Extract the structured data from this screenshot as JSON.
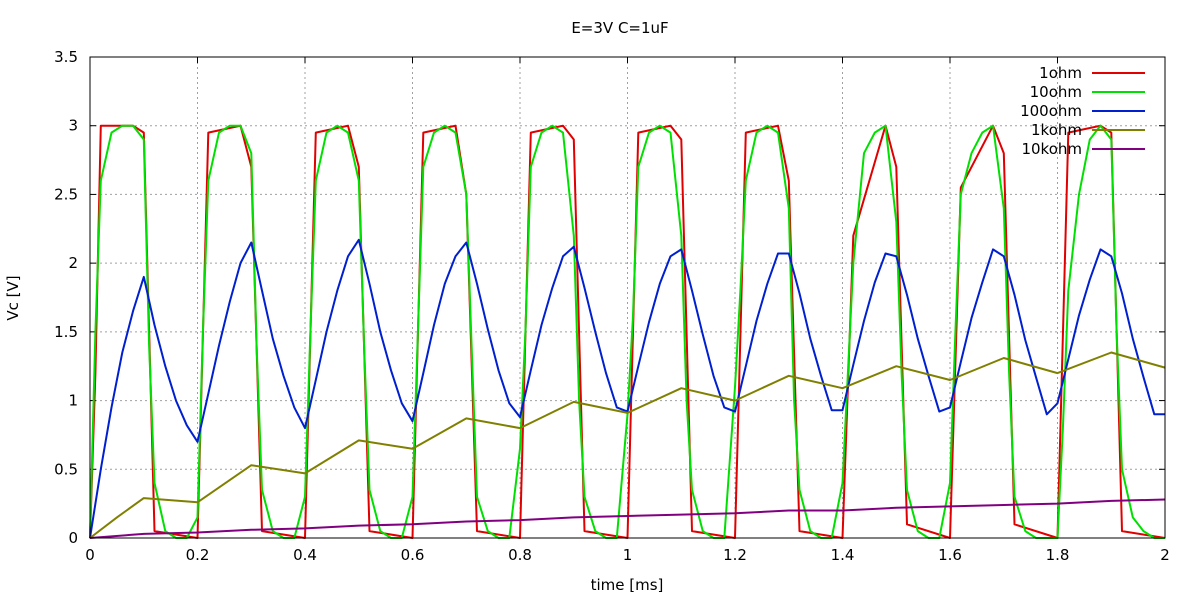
{
  "chart_data": {
    "type": "line",
    "title": "E=3V C=1uF",
    "xlabel": "time [ms]",
    "ylabel": "Vc [V]",
    "xlim": [
      0,
      2
    ],
    "ylim": [
      0,
      3.5
    ],
    "xticks": [
      0,
      0.2,
      0.4,
      0.6,
      0.8,
      1,
      1.2,
      1.4,
      1.6,
      1.8,
      2
    ],
    "yticks": [
      0,
      0.5,
      1,
      1.5,
      2,
      2.5,
      3,
      3.5
    ],
    "grid": true,
    "legend_position": "top-right",
    "series": [
      {
        "name": "1ohm",
        "color": "#e00000",
        "x": [
          0,
          0.01,
          0.02,
          0.08,
          0.1,
          0.12,
          0.2,
          0.22,
          0.28,
          0.3,
          0.32,
          0.4,
          0.42,
          0.48,
          0.5,
          0.52,
          0.6,
          0.62,
          0.68,
          0.7,
          0.72,
          0.8,
          0.82,
          0.88,
          0.9,
          0.92,
          1.0,
          1.02,
          1.08,
          1.1,
          1.12,
          1.2,
          1.22,
          1.28,
          1.3,
          1.32,
          1.4,
          1.42,
          1.48,
          1.5,
          1.52,
          1.6,
          1.62,
          1.68,
          1.7,
          1.72,
          1.8,
          1.82,
          1.88,
          1.9,
          1.92,
          2.0
        ],
        "y": [
          0,
          1.2,
          3.0,
          3.0,
          2.95,
          0.05,
          0.0,
          2.95,
          3.0,
          2.7,
          0.05,
          0.0,
          2.95,
          3.0,
          2.7,
          0.05,
          0.0,
          2.95,
          3.0,
          2.5,
          0.05,
          0.0,
          2.95,
          3.0,
          2.9,
          0.05,
          0.0,
          2.95,
          3.0,
          2.9,
          0.05,
          0.0,
          2.95,
          3.0,
          2.6,
          0.05,
          0.0,
          2.2,
          3.0,
          2.7,
          0.1,
          0.0,
          2.55,
          3.0,
          2.8,
          0.1,
          0.0,
          2.95,
          3.0,
          2.95,
          0.05,
          0.0
        ]
      },
      {
        "name": "10ohm",
        "color": "#00e000",
        "x": [
          0,
          0.01,
          0.02,
          0.04,
          0.06,
          0.08,
          0.1,
          0.11,
          0.12,
          0.14,
          0.16,
          0.18,
          0.2,
          0.21,
          0.22,
          0.24,
          0.26,
          0.28,
          0.3,
          0.31,
          0.32,
          0.34,
          0.36,
          0.38,
          0.4,
          0.41,
          0.42,
          0.44,
          0.46,
          0.48,
          0.5,
          0.51,
          0.52,
          0.54,
          0.56,
          0.58,
          0.6,
          0.61,
          0.62,
          0.64,
          0.66,
          0.68,
          0.7,
          0.71,
          0.72,
          0.74,
          0.76,
          0.78,
          0.8,
          0.81,
          0.82,
          0.84,
          0.86,
          0.88,
          0.9,
          0.91,
          0.92,
          0.94,
          0.96,
          0.98,
          1.0,
          1.01,
          1.02,
          1.04,
          1.06,
          1.08,
          1.1,
          1.11,
          1.12,
          1.14,
          1.16,
          1.18,
          1.2,
          1.21,
          1.22,
          1.24,
          1.26,
          1.28,
          1.3,
          1.31,
          1.32,
          1.34,
          1.36,
          1.38,
          1.4,
          1.41,
          1.42,
          1.44,
          1.46,
          1.48,
          1.5,
          1.51,
          1.52,
          1.54,
          1.56,
          1.58,
          1.6,
          1.61,
          1.62,
          1.64,
          1.66,
          1.68,
          1.7,
          1.71,
          1.72,
          1.74,
          1.76,
          1.78,
          1.8,
          1.81,
          1.82,
          1.84,
          1.86,
          1.88,
          1.9,
          1.91,
          1.92,
          1.94,
          1.96,
          1.98,
          2.0
        ],
        "y": [
          0,
          1.5,
          2.6,
          2.95,
          3.0,
          3.0,
          2.9,
          1.4,
          0.4,
          0.05,
          0.0,
          0.0,
          0.15,
          1.5,
          2.6,
          2.95,
          3.0,
          3.0,
          2.8,
          1.4,
          0.35,
          0.05,
          0.0,
          0.0,
          0.3,
          1.5,
          2.6,
          2.95,
          3.0,
          2.95,
          2.6,
          1.4,
          0.35,
          0.05,
          0.0,
          0.0,
          0.3,
          1.5,
          2.7,
          2.95,
          3.0,
          2.95,
          2.5,
          1.4,
          0.3,
          0.05,
          0.0,
          0.0,
          0.65,
          1.5,
          2.7,
          2.95,
          3.0,
          2.95,
          2.2,
          1.0,
          0.3,
          0.05,
          0.0,
          0.0,
          0.9,
          1.6,
          2.7,
          2.95,
          3.0,
          2.95,
          2.2,
          1.0,
          0.35,
          0.05,
          0.0,
          0.0,
          1.1,
          1.8,
          2.6,
          2.95,
          3.0,
          2.95,
          2.4,
          1.0,
          0.35,
          0.05,
          0.0,
          0.0,
          0.4,
          1.2,
          2.0,
          2.8,
          2.95,
          3.0,
          2.3,
          1.2,
          0.35,
          0.05,
          0.0,
          0.0,
          0.4,
          1.5,
          2.5,
          2.8,
          2.95,
          3.0,
          2.4,
          1.2,
          0.3,
          0.05,
          0.0,
          0.0,
          0.0,
          0.8,
          1.8,
          2.5,
          2.9,
          3.0,
          2.9,
          1.5,
          0.5,
          0.15,
          0.05,
          0.0,
          0.0
        ]
      },
      {
        "name": "100ohm",
        "color": "#0020d0",
        "x": [
          0,
          0.02,
          0.04,
          0.06,
          0.08,
          0.1,
          0.12,
          0.14,
          0.16,
          0.18,
          0.2,
          0.22,
          0.24,
          0.26,
          0.28,
          0.3,
          0.32,
          0.34,
          0.36,
          0.38,
          0.4,
          0.42,
          0.44,
          0.46,
          0.48,
          0.5,
          0.52,
          0.54,
          0.56,
          0.58,
          0.6,
          0.62,
          0.64,
          0.66,
          0.68,
          0.7,
          0.72,
          0.74,
          0.76,
          0.78,
          0.8,
          0.82,
          0.84,
          0.86,
          0.88,
          0.9,
          0.92,
          0.94,
          0.96,
          0.98,
          1.0,
          1.02,
          1.04,
          1.06,
          1.08,
          1.1,
          1.12,
          1.14,
          1.16,
          1.18,
          1.2,
          1.22,
          1.24,
          1.26,
          1.28,
          1.3,
          1.32,
          1.34,
          1.36,
          1.38,
          1.4,
          1.42,
          1.44,
          1.46,
          1.48,
          1.5,
          1.52,
          1.54,
          1.56,
          1.58,
          1.6,
          1.62,
          1.64,
          1.66,
          1.68,
          1.7,
          1.72,
          1.74,
          1.76,
          1.78,
          1.8,
          1.82,
          1.84,
          1.86,
          1.88,
          1.9,
          1.92,
          1.94,
          1.96,
          1.98,
          2.0
        ],
        "y": [
          0,
          0.5,
          0.95,
          1.35,
          1.65,
          1.9,
          1.55,
          1.25,
          1.0,
          0.82,
          0.7,
          1.05,
          1.4,
          1.72,
          2.0,
          2.15,
          1.8,
          1.45,
          1.18,
          0.95,
          0.8,
          1.15,
          1.5,
          1.8,
          2.05,
          2.17,
          1.85,
          1.5,
          1.22,
          0.98,
          0.85,
          1.2,
          1.55,
          1.85,
          2.05,
          2.15,
          1.85,
          1.52,
          1.22,
          0.98,
          0.88,
          1.22,
          1.55,
          1.82,
          2.05,
          2.12,
          1.82,
          1.5,
          1.2,
          0.95,
          0.92,
          1.25,
          1.57,
          1.85,
          2.05,
          2.1,
          1.8,
          1.48,
          1.18,
          0.95,
          0.92,
          1.25,
          1.58,
          1.85,
          2.07,
          2.07,
          1.78,
          1.45,
          1.18,
          0.93,
          0.93,
          1.26,
          1.58,
          1.86,
          2.07,
          2.05,
          1.77,
          1.45,
          1.18,
          0.92,
          0.95,
          1.28,
          1.6,
          1.86,
          2.1,
          2.05,
          1.77,
          1.44,
          1.17,
          0.9,
          0.98,
          1.3,
          1.62,
          1.88,
          2.1,
          2.05,
          1.78,
          1.45,
          1.17,
          0.9,
          0.9
        ]
      },
      {
        "name": "1kohm",
        "color": "#808000",
        "x": [
          0,
          0.05,
          0.1,
          0.2,
          0.3,
          0.4,
          0.5,
          0.6,
          0.7,
          0.8,
          0.9,
          1.0,
          1.1,
          1.2,
          1.3,
          1.4,
          1.5,
          1.6,
          1.7,
          1.8,
          1.9,
          2.0
        ],
        "y": [
          0,
          0.15,
          0.29,
          0.26,
          0.53,
          0.47,
          0.71,
          0.65,
          0.87,
          0.8,
          0.99,
          0.91,
          1.09,
          1.0,
          1.18,
          1.09,
          1.25,
          1.15,
          1.31,
          1.2,
          1.35,
          1.24
        ]
      },
      {
        "name": "10kohm",
        "color": "#800080",
        "x": [
          0,
          0.1,
          0.2,
          0.3,
          0.4,
          0.5,
          0.6,
          0.7,
          0.8,
          0.9,
          1.0,
          1.1,
          1.2,
          1.3,
          1.4,
          1.5,
          1.6,
          1.7,
          1.8,
          1.9,
          2.0
        ],
        "y": [
          0,
          0.03,
          0.04,
          0.06,
          0.07,
          0.09,
          0.1,
          0.12,
          0.13,
          0.15,
          0.16,
          0.17,
          0.18,
          0.2,
          0.2,
          0.22,
          0.23,
          0.24,
          0.25,
          0.27,
          0.28
        ]
      }
    ]
  }
}
